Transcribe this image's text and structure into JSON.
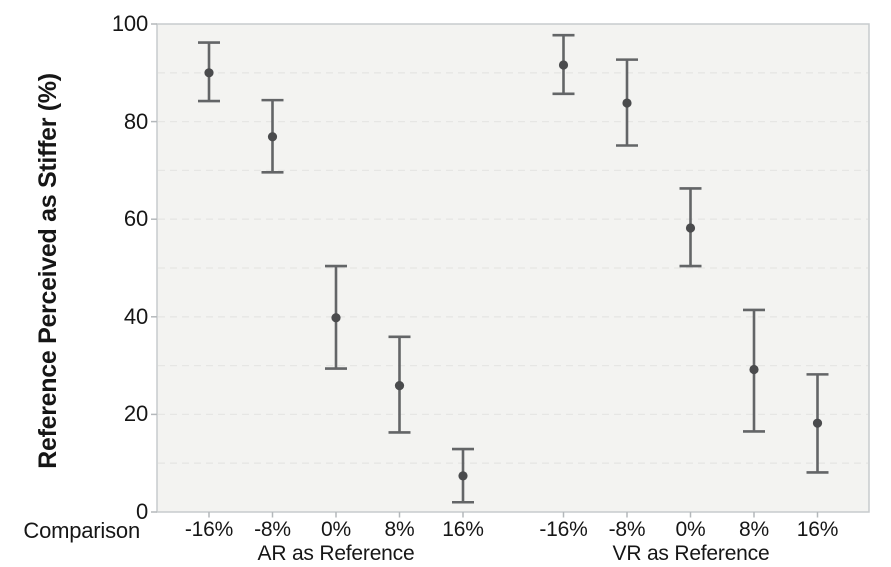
{
  "chart_data": {
    "type": "scatter",
    "subtype": "point-estimates-with-error-bars",
    "title": "",
    "ylabel": "Reference Perceived as Stiffer (%)",
    "xlabel": "Comparison",
    "categories": [
      "-16%",
      "-8%",
      "0%",
      "8%",
      "16%"
    ],
    "series": [
      {
        "name": "AR as Reference",
        "means": [
          90.0,
          76.9,
          39.8,
          25.9,
          7.4
        ],
        "ci_low": [
          84.2,
          69.6,
          29.4,
          16.3,
          2.0
        ],
        "ci_high": [
          96.2,
          84.4,
          50.4,
          35.9,
          12.9
        ]
      },
      {
        "name": "VR as Reference",
        "means": [
          91.6,
          83.8,
          58.2,
          29.2,
          18.2
        ],
        "ci_low": [
          85.7,
          75.1,
          50.4,
          16.5,
          8.1
        ],
        "ci_high": [
          97.7,
          92.7,
          66.3,
          41.4,
          28.2
        ]
      }
    ],
    "ylim": [
      0,
      100
    ],
    "yticks": [
      0,
      20,
      40,
      60,
      80,
      100
    ],
    "yticks_minor": [
      10,
      30,
      50,
      70,
      90
    ],
    "grid": "horizontal-dashed",
    "legend": "none",
    "marker": "filled-circle"
  },
  "colors": {
    "background": "#ffffff",
    "panel_bg": "#f3f3f1",
    "panel_border": "#c7cbcd",
    "gridline": "#e6e6e4",
    "tick_mark": "#b4b8bb",
    "error_bar": "#636567",
    "point": "#4a4b4d",
    "text": "#161616"
  }
}
